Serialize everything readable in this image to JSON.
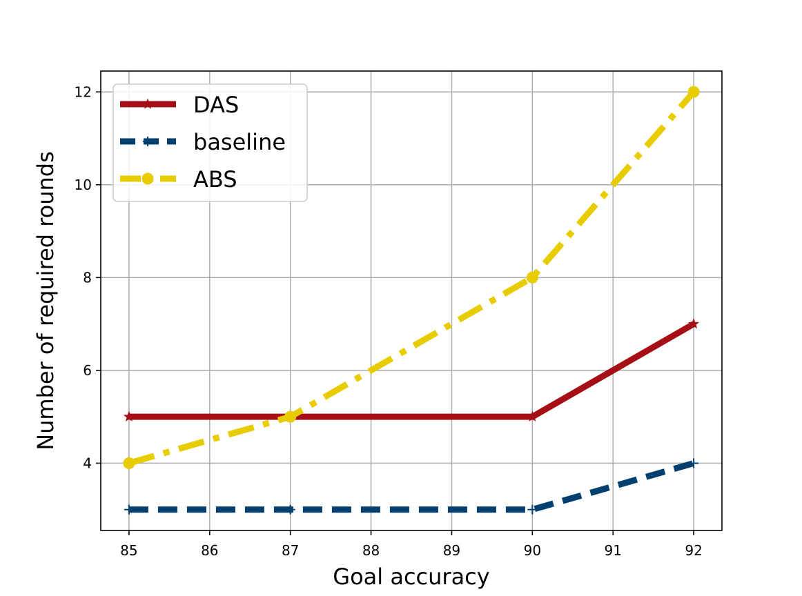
{
  "chart_data": {
    "type": "line",
    "xlabel": "Goal accuracy",
    "ylabel": "Number of required rounds",
    "xlim": [
      84.65,
      92.35
    ],
    "ylim": [
      2.55,
      12.45
    ],
    "x_ticks": [
      85,
      86,
      87,
      88,
      89,
      90,
      91,
      92
    ],
    "y_ticks": [
      4,
      6,
      8,
      10,
      12
    ],
    "grid": true,
    "legend_position": "top-left",
    "series": [
      {
        "name": "DAS",
        "x": [
          85,
          87,
          90,
          92
        ],
        "values": [
          5,
          5,
          5,
          7
        ],
        "color": "#a50f15",
        "line_style": "solid",
        "marker": "star"
      },
      {
        "name": "baseline",
        "x": [
          85,
          87,
          90,
          92
        ],
        "values": [
          3,
          3,
          3,
          4
        ],
        "color": "#003f6e",
        "line_style": "dashed",
        "marker": "plus"
      },
      {
        "name": "ABS",
        "x": [
          85,
          87,
          90,
          92
        ],
        "values": [
          4,
          5,
          8,
          12
        ],
        "color": "#e6cc00",
        "line_style": "dashdot",
        "marker": "circle"
      }
    ]
  }
}
